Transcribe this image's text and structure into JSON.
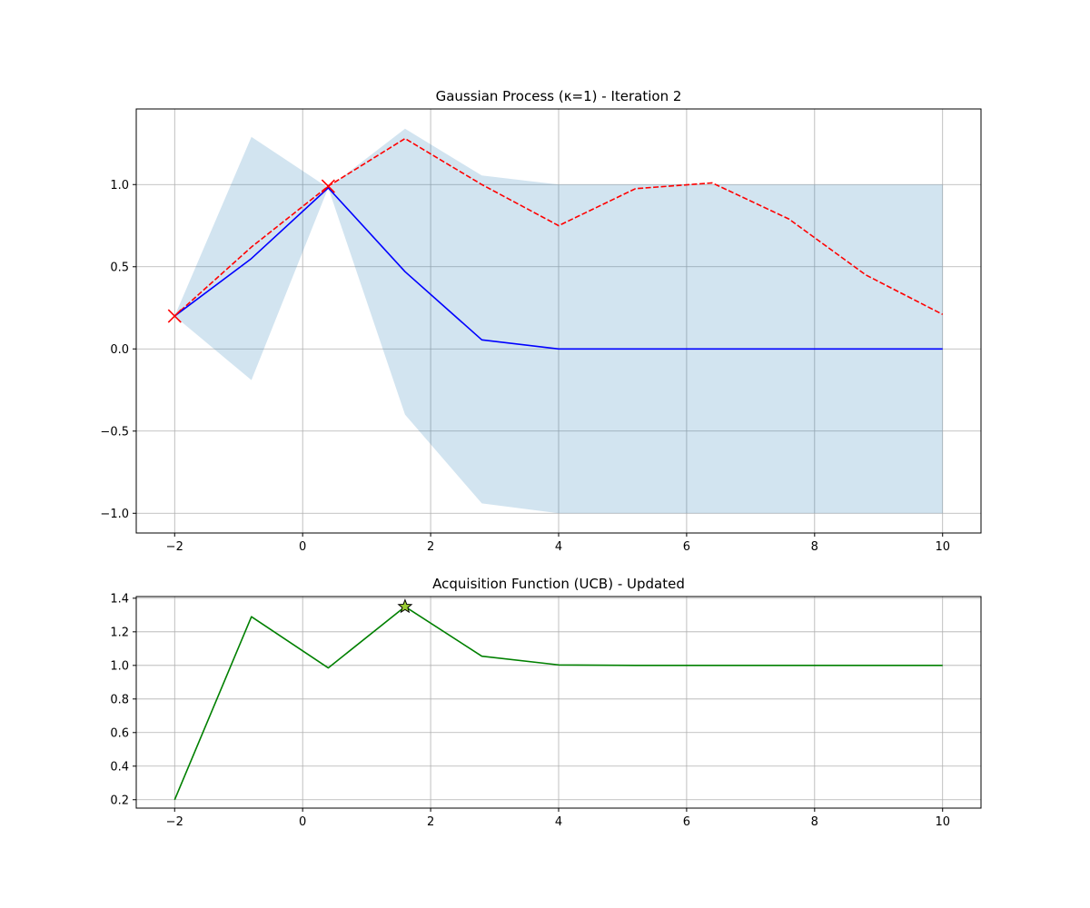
{
  "colors": {
    "background": "#ffffff",
    "axes_frame": "#000000",
    "grid": "#b0b0b0",
    "gp_mean": "#0000ff",
    "true_function": "#ff0000",
    "confidence_band": "#1f77b4",
    "acquisition": "#008000",
    "star_fill": "#9acd32"
  },
  "chart_data": [
    {
      "type": "line",
      "title": "Gaussian Process (κ=1) - Iteration 2",
      "xlabel": "",
      "ylabel": "",
      "xlim": [
        -2.6,
        10.6
      ],
      "ylim": [
        -1.12,
        1.46
      ],
      "xticks": [
        -2,
        0,
        2,
        4,
        6,
        8,
        10
      ],
      "yticks": [
        -1.0,
        -0.5,
        0.0,
        0.5,
        1.0
      ],
      "xtick_labels": [
        "−2",
        "0",
        "2",
        "4",
        "6",
        "8",
        "10"
      ],
      "ytick_labels": [
        "−1.0",
        "−0.5",
        "0.0",
        "0.5",
        "1.0"
      ],
      "grid": true,
      "x": [
        -2.0,
        -0.8,
        0.4,
        1.6,
        2.8,
        4.0,
        5.2,
        6.4,
        7.6,
        8.8,
        10.0
      ],
      "series": [
        {
          "style": "dashed",
          "color": "#ff0000",
          "values": [
            0.2,
            0.62,
            0.99,
            1.28,
            1.0,
            0.75,
            0.975,
            1.01,
            0.79,
            0.45,
            0.21
          ]
        },
        {
          "style": "solid",
          "color": "#0000ff",
          "values": [
            0.2,
            0.55,
            0.98,
            0.47,
            0.055,
            0.0,
            0.0,
            0.0,
            0.0,
            0.0,
            0.0
          ]
        }
      ],
      "band": {
        "color": "#1f77b4",
        "opacity": 0.2,
        "lower": [
          0.2,
          -0.19,
          0.98,
          -0.4,
          -0.94,
          -1.0,
          -1.0,
          -1.0,
          -1.0,
          -1.0,
          -1.0
        ],
        "upper": [
          0.2,
          1.29,
          0.98,
          1.34,
          1.055,
          1.0,
          1.0,
          1.0,
          1.0,
          1.0,
          1.0
        ]
      },
      "observations": {
        "marker": "x",
        "color": "#ff0000",
        "points": [
          [
            -2.0,
            0.2
          ],
          [
            0.4,
            0.99
          ]
        ]
      }
    },
    {
      "type": "line",
      "title": "Acquisition Function (UCB) - Updated",
      "xlabel": "",
      "ylabel": "",
      "xlim": [
        -2.6,
        10.6
      ],
      "ylim": [
        0.15,
        1.41
      ],
      "xticks": [
        -2,
        0,
        2,
        4,
        6,
        8,
        10
      ],
      "yticks": [
        0.2,
        0.4,
        0.6,
        0.8,
        1.0,
        1.2,
        1.4
      ],
      "xtick_labels": [
        "−2",
        "0",
        "2",
        "4",
        "6",
        "8",
        "10"
      ],
      "ytick_labels": [
        "0.2",
        "0.4",
        "0.6",
        "0.8",
        "1.0",
        "1.2",
        "1.4"
      ],
      "grid": true,
      "x": [
        -2.0,
        -0.8,
        0.4,
        1.6,
        2.8,
        4.0,
        5.2,
        6.4,
        7.6,
        8.8,
        10.0
      ],
      "series": [
        {
          "style": "solid",
          "color": "#008000",
          "values": [
            0.2,
            1.29,
            0.985,
            1.35,
            1.055,
            1.003,
            1.0,
            1.0,
            1.0,
            1.0,
            1.0
          ]
        }
      ],
      "max_point": {
        "marker": "star",
        "point": [
          1.6,
          1.35
        ]
      }
    }
  ]
}
